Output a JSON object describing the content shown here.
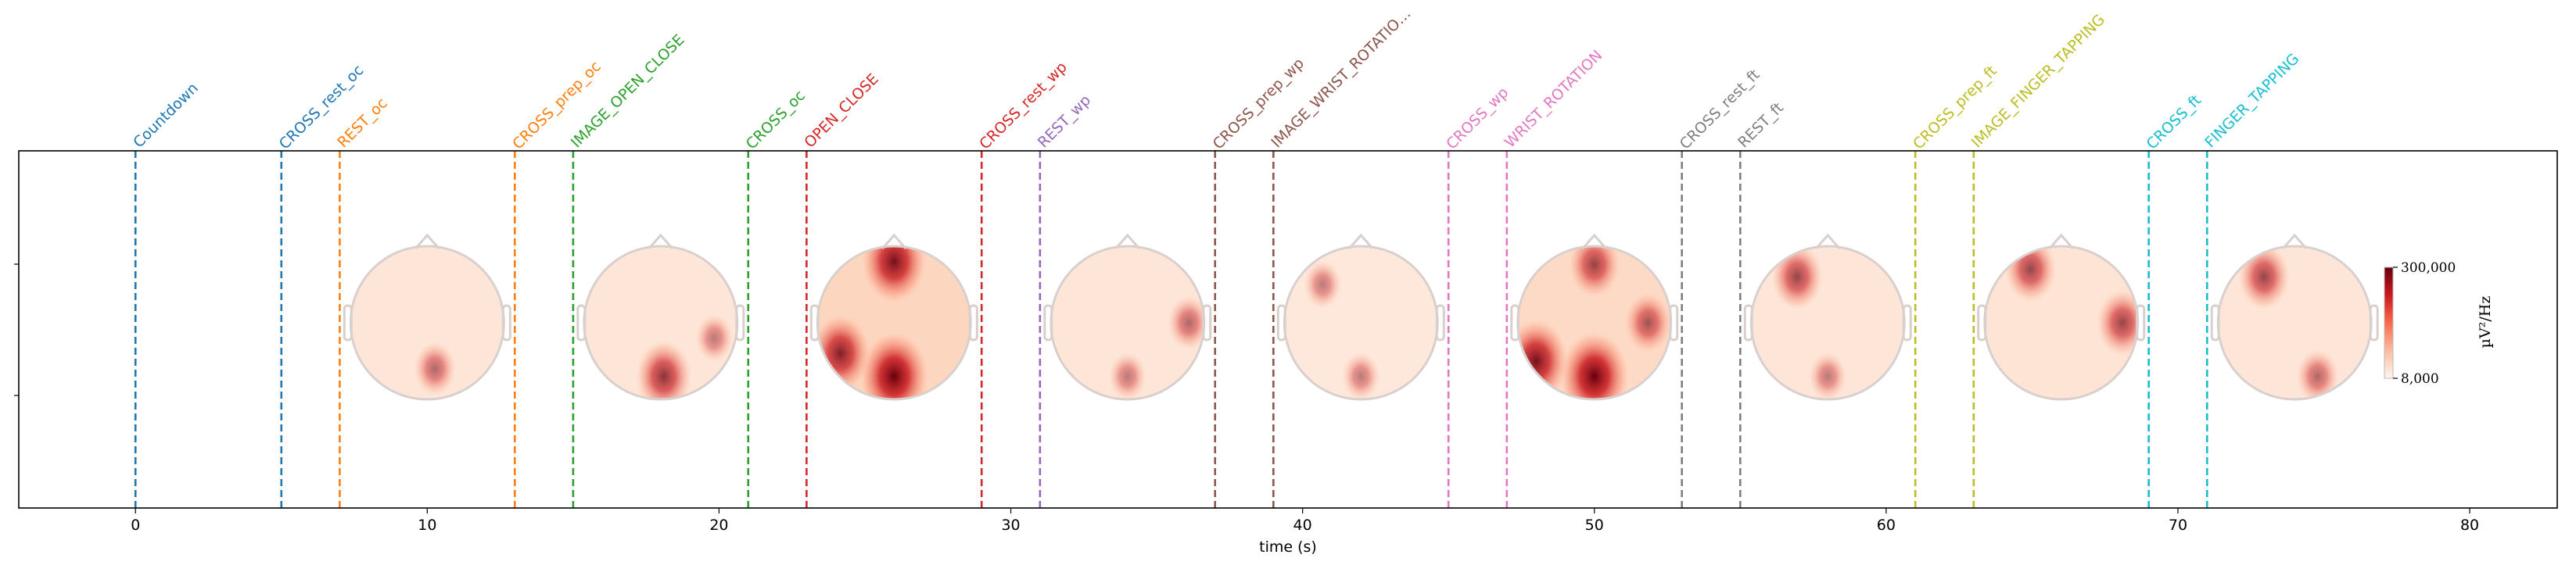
{
  "chart_data": {
    "type": "event-timeline",
    "xlabel": "time (s)",
    "xlim": [
      -4,
      83
    ],
    "xticks": [
      0,
      10,
      20,
      30,
      40,
      50,
      60,
      70,
      80
    ],
    "xtick_labels": [
      "0",
      "10",
      "20",
      "30",
      "40",
      "50",
      "60",
      "70",
      "80"
    ],
    "events": [
      {
        "label": "Countdown",
        "time": 0,
        "color": "#1f77b4"
      },
      {
        "label": "CROSS_rest_oc",
        "time": 5,
        "color": "#1f77b4"
      },
      {
        "label": "REST_oc",
        "time": 7,
        "color": "#ff7f0e"
      },
      {
        "label": "CROSS_prep_oc",
        "time": 13,
        "color": "#ff7f0e"
      },
      {
        "label": "IMAGE_OPEN_CLOSE",
        "time": 15,
        "color": "#2ca02c"
      },
      {
        "label": "CROSS_oc",
        "time": 21,
        "color": "#2ca02c"
      },
      {
        "label": "OPEN_CLOSE",
        "time": 23,
        "color": "#d62728"
      },
      {
        "label": "CROSS_rest_wp",
        "time": 29,
        "color": "#d62728"
      },
      {
        "label": "REST_wp",
        "time": 31,
        "color": "#9467bd"
      },
      {
        "label": "CROSS_prep_wp",
        "time": 37,
        "color": "#8c564b"
      },
      {
        "label": "IMAGE_WRIST_ROTATIO…",
        "time": 39,
        "color": "#8c564b"
      },
      {
        "label": "CROSS_wp",
        "time": 45,
        "color": "#e377c2"
      },
      {
        "label": "WRIST_ROTATION",
        "time": 47,
        "color": "#e377c2"
      },
      {
        "label": "CROSS_rest_ft",
        "time": 53,
        "color": "#7f7f7f"
      },
      {
        "label": "REST_ft",
        "time": 55,
        "color": "#7f7f7f"
      },
      {
        "label": "CROSS_prep_ft",
        "time": 61,
        "color": "#bcbd22"
      },
      {
        "label": "IMAGE_FINGER_TAPPING",
        "time": 63,
        "color": "#bcbd22"
      },
      {
        "label": "CROSS_ft",
        "time": 69,
        "color": "#17becf"
      },
      {
        "label": "FINGER_TAPPING",
        "time": 71,
        "color": "#17becf"
      }
    ],
    "topomaps": [
      {
        "center_time": 10,
        "intensity": 0.2,
        "hotspots": [
          {
            "x": 0.55,
            "y": 0.8,
            "v": 0.4
          }
        ]
      },
      {
        "center_time": 18,
        "intensity": 0.2,
        "hotspots": [
          {
            "x": 0.52,
            "y": 0.85,
            "v": 0.7
          },
          {
            "x": 0.85,
            "y": 0.6,
            "v": 0.3
          }
        ]
      },
      {
        "center_time": 26,
        "intensity": 0.6,
        "hotspots": [
          {
            "x": 0.5,
            "y": 0.85,
            "v": 1.0
          },
          {
            "x": 0.15,
            "y": 0.7,
            "v": 0.8
          },
          {
            "x": 0.5,
            "y": 0.1,
            "v": 0.9
          }
        ]
      },
      {
        "center_time": 34,
        "intensity": 0.2,
        "hotspots": [
          {
            "x": 0.9,
            "y": 0.5,
            "v": 0.4
          },
          {
            "x": 0.5,
            "y": 0.85,
            "v": 0.3
          }
        ]
      },
      {
        "center_time": 42,
        "intensity": 0.15,
        "hotspots": [
          {
            "x": 0.25,
            "y": 0.25,
            "v": 0.3
          },
          {
            "x": 0.5,
            "y": 0.85,
            "v": 0.3
          }
        ]
      },
      {
        "center_time": 50,
        "intensity": 0.5,
        "hotspots": [
          {
            "x": 0.5,
            "y": 0.85,
            "v": 1.0
          },
          {
            "x": 0.12,
            "y": 0.75,
            "v": 0.9
          },
          {
            "x": 0.5,
            "y": 0.12,
            "v": 0.6
          },
          {
            "x": 0.85,
            "y": 0.5,
            "v": 0.5
          }
        ]
      },
      {
        "center_time": 58,
        "intensity": 0.2,
        "hotspots": [
          {
            "x": 0.3,
            "y": 0.2,
            "v": 0.6
          },
          {
            "x": 0.5,
            "y": 0.85,
            "v": 0.3
          }
        ]
      },
      {
        "center_time": 66,
        "intensity": 0.25,
        "hotspots": [
          {
            "x": 0.3,
            "y": 0.15,
            "v": 0.6
          },
          {
            "x": 0.9,
            "y": 0.5,
            "v": 0.6
          }
        ]
      },
      {
        "center_time": 74,
        "intensity": 0.2,
        "hotspots": [
          {
            "x": 0.3,
            "y": 0.2,
            "v": 0.6
          },
          {
            "x": 0.65,
            "y": 0.85,
            "v": 0.4
          }
        ]
      }
    ],
    "colorbar": {
      "unit": "µV²/Hz",
      "max_label": "300,000",
      "min_label": "8,000",
      "colormap": "Reds"
    },
    "grid": false
  }
}
